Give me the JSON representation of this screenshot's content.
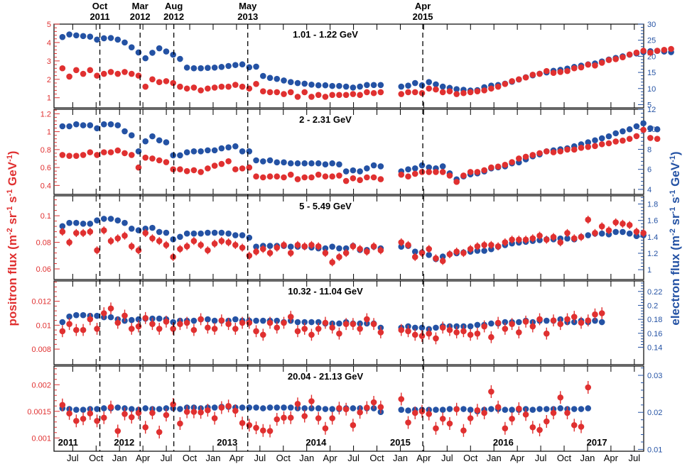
{
  "chart_data": {
    "type": "scatter",
    "ylabel_left": [
      "positron flux  (m",
      "-2",
      " sr",
      "-1",
      " s",
      "-1",
      " GeV",
      "-1",
      ")"
    ],
    "ylabel_right": [
      "electron flux  (m",
      "-2",
      " sr",
      "-1",
      " s",
      "-1",
      " GeV",
      "-1",
      ")"
    ],
    "x_domain": [
      2011.3,
      2017.6
    ],
    "x_ticks": [
      {
        "label": "Jul",
        "x": 2011.5
      },
      {
        "label": "Oct",
        "x": 2011.75
      },
      {
        "label": "Jan",
        "x": 2012.0
      },
      {
        "label": "Apr",
        "x": 2012.25
      },
      {
        "label": "Jul",
        "x": 2012.5
      },
      {
        "label": "Oct",
        "x": 2012.75
      },
      {
        "label": "Jan",
        "x": 2013.0
      },
      {
        "label": "Apr",
        "x": 2013.25
      },
      {
        "label": "Jul",
        "x": 2013.5
      },
      {
        "label": "Oct",
        "x": 2013.75
      },
      {
        "label": "Jan",
        "x": 2014.0
      },
      {
        "label": "Apr",
        "x": 2014.25
      },
      {
        "label": "Jul",
        "x": 2014.5
      },
      {
        "label": "Oct",
        "x": 2014.75
      },
      {
        "label": "Jan",
        "x": 2015.0
      },
      {
        "label": "Apr",
        "x": 2015.25
      },
      {
        "label": "Jul",
        "x": 2015.5
      },
      {
        "label": "Oct",
        "x": 2015.75
      },
      {
        "label": "Jan",
        "x": 2016.0
      },
      {
        "label": "Apr",
        "x": 2016.25
      },
      {
        "label": "Jul",
        "x": 2016.5
      },
      {
        "label": "Oct",
        "x": 2016.75
      },
      {
        "label": "Jan",
        "x": 2017.0
      },
      {
        "label": "Apr",
        "x": 2017.25
      },
      {
        "label": "Jul",
        "x": 2017.5
      }
    ],
    "year_labels": [
      {
        "label": "2011",
        "x": 2011.45
      },
      {
        "label": "2012",
        "x": 2012.05
      },
      {
        "label": "2013",
        "x": 2013.15
      },
      {
        "label": "2014",
        "x": 2014.1
      },
      {
        "label": "2015",
        "x": 2015.0
      },
      {
        "label": "2016",
        "x": 2016.1
      },
      {
        "label": "2017",
        "x": 2017.1
      }
    ],
    "events": [
      {
        "label": [
          "Oct",
          "2011"
        ],
        "x": 2011.79
      },
      {
        "label": [
          "Mar",
          "2012"
        ],
        "x": 2012.22
      },
      {
        "label": [
          "Aug",
          "2012"
        ],
        "x": 2012.58
      },
      {
        "label": [
          "May",
          "2013"
        ],
        "x": 2013.37
      },
      {
        "label": [
          "Apr",
          "2015"
        ],
        "x": 2015.24
      }
    ],
    "gap": [
      2014.85,
      2015.0
    ],
    "panels": [
      {
        "label": "1.01 - 1.22 GeV",
        "left_range": [
          0.45,
          5.0
        ],
        "left_ticks": [
          1,
          2,
          3,
          4,
          5
        ],
        "right_range": [
          4.0,
          30.0
        ],
        "right_ticks": [
          5,
          10,
          15,
          20,
          25,
          30
        ],
        "positron": [
          2.6,
          2.15,
          2.5,
          2.3,
          2.5,
          2.2,
          2.3,
          2.4,
          2.3,
          2.4,
          2.3,
          2.2,
          1.6,
          2.0,
          1.85,
          1.9,
          1.8,
          1.6,
          1.5,
          1.55,
          1.4,
          1.5,
          1.55,
          1.6,
          1.6,
          1.7,
          1.6,
          1.5,
          1.75,
          1.35,
          1.3,
          1.3,
          1.2,
          1.3,
          1.05,
          1.3,
          1.05,
          1.15,
          1.05,
          1.15,
          1.15,
          1.15,
          1.2,
          1.15,
          1.3,
          1.25,
          1.3,
          1.2,
          1.3,
          1.3,
          1.25,
          1.5,
          1.45,
          1.3,
          1.35,
          1.2,
          1.25,
          1.3,
          1.35,
          1.4,
          1.5,
          1.6,
          1.75,
          1.9,
          2.0,
          2.1,
          2.25,
          2.3,
          2.45,
          2.35,
          2.4,
          2.45,
          2.6,
          2.65,
          2.8,
          2.75,
          2.9,
          3.05,
          3.1,
          3.2,
          3.35,
          3.45,
          3.55,
          3.45,
          3.55,
          3.6,
          3.65
        ],
        "positron_err": 0.08,
        "electron": [
          26,
          26.8,
          26.5,
          26.3,
          26.1,
          25.2,
          25.6,
          25.7,
          25.2,
          24.3,
          22.8,
          21.2,
          19.4,
          21.1,
          22.5,
          21.5,
          20.5,
          19.2,
          16.5,
          16.3,
          16.3,
          16.4,
          16.5,
          16.7,
          17.0,
          17.3,
          17.5,
          16.6,
          16.8,
          13.9,
          13.3,
          13.0,
          12.5,
          12.0,
          11.7,
          11.5,
          11.2,
          11.0,
          11.0,
          10.8,
          10.8,
          10.6,
          10.3,
          10.6,
          11.1,
          11.1,
          11.1,
          10.6,
          10.9,
          11.7,
          11.0,
          12.0,
          11.3,
          10.6,
          10.2,
          9.8,
          9.6,
          9.4,
          9.5,
          10.4,
          10.9,
          11.1,
          11.5,
          12.1,
          12.8,
          13.5,
          14.1,
          14.6,
          15.0,
          15.5,
          15.8,
          16.2,
          16.7,
          17.1,
          17.5,
          17.8,
          18.4,
          19.0,
          19.5,
          20.0,
          20.5,
          20.9,
          21.3,
          21.6,
          21.7,
          21.5,
          21.3
        ],
        "electron_err": 0.3
      },
      {
        "label": "2 - 2.31 GeV",
        "left_range": [
          0.3,
          1.25
        ],
        "left_ticks": [
          0.4,
          0.6,
          0.8,
          1.0,
          1.2
        ],
        "right_range": [
          3.5,
          12.0
        ],
        "right_ticks": [
          4,
          6,
          8,
          10,
          12
        ],
        "positron": [
          0.74,
          0.73,
          0.73,
          0.74,
          0.77,
          0.74,
          0.77,
          0.77,
          0.79,
          0.76,
          0.74,
          0.6,
          0.71,
          0.7,
          0.68,
          0.66,
          0.58,
          0.58,
          0.56,
          0.57,
          0.55,
          0.59,
          0.62,
          0.64,
          0.67,
          0.58,
          0.59,
          0.6,
          0.5,
          0.49,
          0.5,
          0.5,
          0.49,
          0.52,
          0.47,
          0.49,
          0.49,
          0.52,
          0.5,
          0.5,
          0.51,
          0.45,
          0.48,
          0.46,
          0.49,
          0.49,
          0.47,
          0.52,
          0.5,
          0.53,
          0.55,
          0.55,
          0.55,
          0.55,
          0.51,
          0.44,
          0.51,
          0.55,
          0.55,
          0.57,
          0.6,
          0.61,
          0.63,
          0.66,
          0.7,
          0.72,
          0.74,
          0.76,
          0.78,
          0.77,
          0.78,
          0.8,
          0.8,
          0.82,
          0.83,
          0.84,
          0.86,
          0.87,
          0.89,
          0.9,
          0.92,
          0.95,
          1.02,
          0.93,
          0.92
        ],
        "positron_err": 0.015,
        "electron": [
          10.3,
          10.3,
          10.5,
          10.4,
          10.4,
          10.1,
          10.5,
          10.5,
          10.4,
          9.8,
          9.4,
          7.8,
          8.8,
          9.3,
          8.9,
          8.7,
          7.4,
          7.4,
          7.7,
          7.8,
          7.8,
          7.9,
          7.9,
          8.1,
          8.2,
          8.3,
          7.8,
          7.8,
          6.9,
          6.8,
          6.9,
          6.7,
          6.7,
          6.6,
          6.6,
          6.6,
          6.6,
          6.6,
          6.5,
          6.6,
          6.5,
          5.8,
          5.9,
          5.8,
          6.1,
          6.4,
          6.3,
          5.8,
          6.0,
          6.1,
          6.4,
          6.2,
          6.1,
          6.3,
          5.6,
          5.0,
          5.3,
          5.5,
          5.6,
          5.8,
          6.1,
          6.2,
          6.3,
          6.6,
          6.7,
          7.0,
          7.3,
          7.5,
          7.8,
          7.9,
          8.0,
          8.1,
          8.3,
          8.5,
          8.7,
          8.9,
          9.1,
          9.3,
          9.6,
          9.8,
          10.0,
          10.3,
          10.6,
          10.1,
          10.0
        ],
        "electron_err": 0.12
      },
      {
        "label": "5 - 5.49 GeV",
        "left_range": [
          0.052,
          0.115
        ],
        "left_ticks": [
          0.06,
          0.08,
          0.1
        ],
        "right_range": [
          0.88,
          1.9
        ],
        "right_ticks": [
          1.0,
          1.2,
          1.4,
          1.6,
          1.8
        ],
        "positron": [
          0.088,
          0.08,
          0.087,
          0.087,
          0.088,
          0.074,
          0.089,
          0.081,
          0.083,
          0.085,
          0.077,
          0.074,
          0.087,
          0.083,
          0.081,
          0.078,
          0.069,
          0.075,
          0.077,
          0.081,
          0.078,
          0.074,
          0.079,
          0.081,
          0.08,
          0.078,
          0.076,
          0.07,
          0.073,
          0.075,
          0.072,
          0.076,
          0.078,
          0.072,
          0.078,
          0.077,
          0.078,
          0.077,
          0.072,
          0.065,
          0.069,
          0.072,
          0.077,
          0.075,
          0.073,
          0.077,
          0.074,
          0.08,
          0.078,
          0.069,
          0.072,
          0.075,
          0.068,
          0.066,
          0.071,
          0.073,
          0.072,
          0.075,
          0.077,
          0.078,
          0.078,
          0.077,
          0.08,
          0.082,
          0.082,
          0.082,
          0.083,
          0.085,
          0.082,
          0.084,
          0.08,
          0.087,
          0.083,
          0.084,
          0.097,
          0.087,
          0.092,
          0.089,
          0.095,
          0.094,
          0.093,
          0.088,
          0.087
        ],
        "positron_err": 0.003,
        "electron": [
          1.53,
          1.57,
          1.57,
          1.56,
          1.56,
          1.6,
          1.62,
          1.62,
          1.6,
          1.57,
          1.5,
          1.48,
          1.5,
          1.51,
          1.46,
          1.45,
          1.37,
          1.4,
          1.44,
          1.44,
          1.44,
          1.45,
          1.45,
          1.45,
          1.44,
          1.42,
          1.42,
          1.39,
          1.28,
          1.29,
          1.29,
          1.29,
          1.29,
          1.28,
          1.28,
          1.28,
          1.27,
          1.26,
          1.26,
          1.28,
          1.26,
          1.26,
          1.29,
          1.24,
          1.24,
          1.28,
          1.26,
          1.28,
          1.29,
          1.22,
          1.21,
          1.18,
          1.13,
          1.16,
          1.19,
          1.2,
          1.21,
          1.22,
          1.23,
          1.23,
          1.25,
          1.28,
          1.3,
          1.32,
          1.33,
          1.34,
          1.35,
          1.36,
          1.37,
          1.37,
          1.38,
          1.38,
          1.37,
          1.4,
          1.42,
          1.44,
          1.44,
          1.43,
          1.46,
          1.46,
          1.44,
          1.41,
          1.42
        ],
        "electron_err": 0.02
      },
      {
        "label": "10.32 - 11.04 GeV",
        "left_range": [
          0.0067,
          0.0137
        ],
        "left_ticks": [
          0.008,
          0.01,
          0.012
        ],
        "right_range": [
          0.115,
          0.235
        ],
        "right_ticks": [
          0.14,
          0.16,
          0.18,
          0.2,
          0.22
        ],
        "positron": [
          0.0095,
          0.0101,
          0.0096,
          0.0096,
          0.0105,
          0.0097,
          0.011,
          0.0114,
          0.0102,
          0.0108,
          0.0097,
          0.0099,
          0.0106,
          0.0101,
          0.0097,
          0.0103,
          0.0097,
          0.0101,
          0.0102,
          0.0096,
          0.0105,
          0.0098,
          0.0097,
          0.0104,
          0.0101,
          0.0097,
          0.0102,
          0.0102,
          0.0095,
          0.0092,
          0.0102,
          0.0098,
          0.0102,
          0.0107,
          0.0095,
          0.0097,
          0.0092,
          0.0097,
          0.0102,
          0.0098,
          0.0093,
          0.0101,
          0.0101,
          0.0097,
          0.0105,
          0.0101,
          0.0094,
          0.0096,
          0.0095,
          0.0092,
          0.0091,
          0.0093,
          0.0089,
          0.0098,
          0.0096,
          0.0094,
          0.0095,
          0.0092,
          0.0093,
          0.0099,
          0.009,
          0.0102,
          0.0097,
          0.0101,
          0.0094,
          0.0103,
          0.0099,
          0.0105,
          0.0093,
          0.0104,
          0.0101,
          0.0105,
          0.0107,
          0.0102,
          0.0104,
          0.0109,
          0.011
        ],
        "positron_err": 0.0005,
        "electron": [
          0.176,
          0.184,
          0.186,
          0.186,
          0.185,
          0.185,
          0.183,
          0.183,
          0.18,
          0.178,
          0.179,
          0.18,
          0.181,
          0.181,
          0.181,
          0.18,
          0.176,
          0.178,
          0.178,
          0.178,
          0.18,
          0.18,
          0.178,
          0.178,
          0.178,
          0.18,
          0.178,
          0.178,
          0.178,
          0.178,
          0.178,
          0.178,
          0.176,
          0.178,
          0.176,
          0.176,
          0.176,
          0.176,
          0.174,
          0.174,
          0.174,
          0.176,
          0.174,
          0.174,
          0.174,
          0.174,
          0.168,
          0.168,
          0.17,
          0.168,
          0.168,
          0.166,
          0.168,
          0.17,
          0.17,
          0.17,
          0.17,
          0.17,
          0.172,
          0.172,
          0.174,
          0.174,
          0.176,
          0.176,
          0.176,
          0.178,
          0.176,
          0.178,
          0.178,
          0.178,
          0.18,
          0.176,
          0.176,
          0.178,
          0.176,
          0.178,
          0.176
        ],
        "electron_err": 0.002
      },
      {
        "label": "20.04 - 21.13 GeV",
        "left_range": [
          0.00075,
          0.00235
        ],
        "left_ticks": [
          0.001,
          0.0015,
          0.002
        ],
        "right_range": [
          0.0095,
          0.0325
        ],
        "right_ticks": [
          0.01,
          0.02,
          0.03
        ],
        "positron": [
          0.00162,
          0.00146,
          0.00132,
          0.00136,
          0.00146,
          0.00132,
          0.00138,
          0.00158,
          0.00113,
          0.00145,
          0.00139,
          0.00147,
          0.0012,
          0.00147,
          0.00111,
          0.00143,
          0.00163,
          0.00127,
          0.00149,
          0.00149,
          0.00148,
          0.00152,
          0.00137,
          0.00157,
          0.0016,
          0.00151,
          0.00128,
          0.00124,
          0.00119,
          0.00114,
          0.00113,
          0.00135,
          0.00138,
          0.00138,
          0.00164,
          0.00141,
          0.00169,
          0.00137,
          0.00118,
          0.00137,
          0.00156,
          0.00154,
          0.00124,
          0.00148,
          0.00157,
          0.00167,
          0.00158,
          0.00173,
          0.00129,
          0.00147,
          0.0015,
          0.00145,
          0.00118,
          0.00136,
          0.00127,
          0.00154,
          0.00114,
          0.00137,
          0.00152,
          0.00147,
          0.00187,
          0.00158,
          0.00118,
          0.00136,
          0.00155,
          0.00144,
          0.0012,
          0.00115,
          0.00131,
          0.00147,
          0.00176,
          0.00147,
          0.00124,
          0.00121,
          0.00195
        ],
        "positron_err": 0.00012,
        "electron": [
          0.0211,
          0.0209,
          0.0207,
          0.0207,
          0.0209,
          0.0209,
          0.0211,
          0.0211,
          0.0213,
          0.0211,
          0.0209,
          0.0207,
          0.0211,
          0.0209,
          0.0209,
          0.0211,
          0.0211,
          0.0209,
          0.0213,
          0.0213,
          0.0211,
          0.0213,
          0.0213,
          0.0215,
          0.0215,
          0.0213,
          0.0213,
          0.0213,
          0.0213,
          0.0211,
          0.0213,
          0.0213,
          0.0213,
          0.0213,
          0.0211,
          0.0211,
          0.0211,
          0.0211,
          0.0209,
          0.0209,
          0.0209,
          0.0211,
          0.0211,
          0.0211,
          0.0211,
          0.0211,
          0.0201,
          0.0207,
          0.0205,
          0.0207,
          0.0207,
          0.0207,
          0.0207,
          0.0207,
          0.0209,
          0.0209,
          0.0209,
          0.0207,
          0.0203,
          0.0207,
          0.0209,
          0.0209,
          0.0207,
          0.0207,
          0.0207,
          0.0209,
          0.0207,
          0.0209,
          0.0209,
          0.0209,
          0.0211,
          0.0209,
          0.0209,
          0.0209,
          0.0211
        ],
        "electron_err": 0.0004
      }
    ]
  }
}
